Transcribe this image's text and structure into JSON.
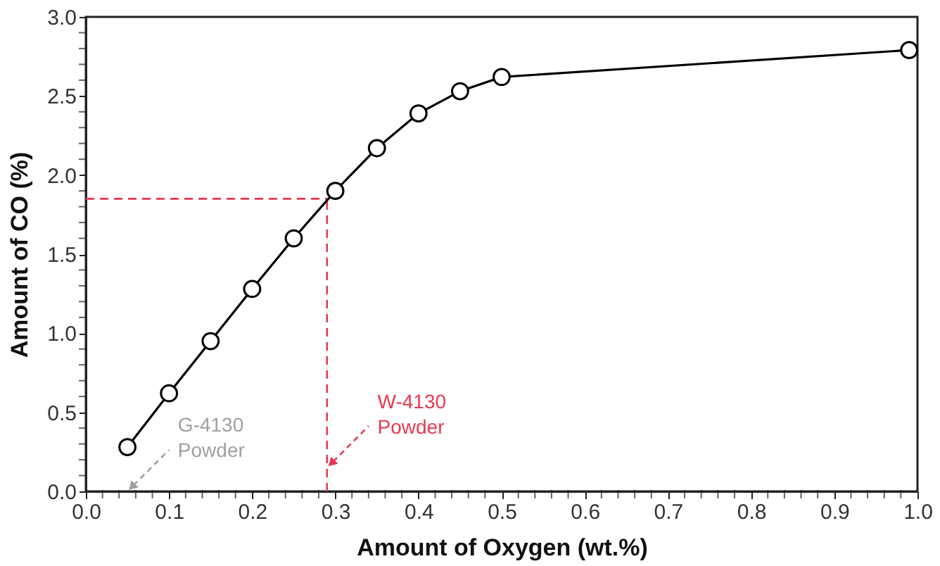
{
  "chart_data": {
    "type": "line",
    "xlabel": "Amount of Oxygen (wt.%)",
    "ylabel": "Amount of CO (%)",
    "x": [
      0.05,
      0.1,
      0.15,
      0.2,
      0.25,
      0.3,
      0.35,
      0.4,
      0.45,
      0.5,
      0.99
    ],
    "series": [
      {
        "color": "#000000",
        "values": [
          0.28,
          0.62,
          0.95,
          1.28,
          1.6,
          1.9,
          2.17,
          2.39,
          2.53,
          2.62,
          2.79
        ]
      }
    ],
    "marker": "circle",
    "line_style": "solid",
    "grid": false,
    "xlim": [
      0,
      1
    ],
    "ylim": [
      0,
      3
    ],
    "xticks": [
      {
        "value": 0,
        "label": "0.0"
      },
      {
        "value": 0.1,
        "label": "0.1"
      },
      {
        "value": 0.2,
        "label": "0.2"
      },
      {
        "value": 0.3,
        "label": "0.3"
      },
      {
        "value": 0.4,
        "label": "0.4"
      },
      {
        "value": 0.5,
        "label": "0.5"
      },
      {
        "value": 0.6,
        "label": "0.6"
      },
      {
        "value": 0.7,
        "label": "0.7"
      },
      {
        "value": 0.8,
        "label": "0.8"
      },
      {
        "value": 0.9,
        "label": "0.9"
      },
      {
        "value": 1,
        "label": "1.0"
      },
      {
        "value": 0.02,
        "label": null
      },
      {
        "value": 0.04,
        "label": null
      },
      {
        "value": 0.06,
        "label": null
      },
      {
        "value": 0.08,
        "label": null
      },
      {
        "value": 0.12,
        "label": null
      },
      {
        "value": 0.14,
        "label": null
      },
      {
        "value": 0.16,
        "label": null
      },
      {
        "value": 0.18,
        "label": null
      },
      {
        "value": 0.22,
        "label": null
      },
      {
        "value": 0.24,
        "label": null
      },
      {
        "value": 0.26,
        "label": null
      },
      {
        "value": 0.28,
        "label": null
      },
      {
        "value": 0.32,
        "label": null
      },
      {
        "value": 0.34,
        "label": null
      },
      {
        "value": 0.36,
        "label": null
      },
      {
        "value": 0.38,
        "label": null
      },
      {
        "value": 0.42,
        "label": null
      },
      {
        "value": 0.44,
        "label": null
      },
      {
        "value": 0.46,
        "label": null
      },
      {
        "value": 0.48,
        "label": null
      },
      {
        "value": 0.52,
        "label": null
      },
      {
        "value": 0.54,
        "label": null
      },
      {
        "value": 0.56,
        "label": null
      },
      {
        "value": 0.58,
        "label": null
      },
      {
        "value": 0.62,
        "label": null
      },
      {
        "value": 0.64,
        "label": null
      },
      {
        "value": 0.66,
        "label": null
      },
      {
        "value": 0.68,
        "label": null
      },
      {
        "value": 0.72,
        "label": null
      },
      {
        "value": 0.74,
        "label": null
      },
      {
        "value": 0.76,
        "label": null
      },
      {
        "value": 0.78,
        "label": null
      },
      {
        "value": 0.82,
        "label": null
      },
      {
        "value": 0.84,
        "label": null
      },
      {
        "value": 0.86,
        "label": null
      },
      {
        "value": 0.88,
        "label": null
      },
      {
        "value": 0.92,
        "label": null
      },
      {
        "value": 0.94,
        "label": null
      },
      {
        "value": 0.96,
        "label": null
      },
      {
        "value": 0.98,
        "label": null
      }
    ],
    "yticks": [
      {
        "value": 0,
        "label": "0.0"
      },
      {
        "value": 0.5,
        "label": "0.5"
      },
      {
        "value": 1,
        "label": "1.0"
      },
      {
        "value": 1.5,
        "label": "1.5"
      },
      {
        "value": 2,
        "label": "2.0"
      },
      {
        "value": 2.5,
        "label": "2.5"
      },
      {
        "value": 3,
        "label": "3.0"
      },
      {
        "value": 0.1,
        "label": null
      },
      {
        "value": 0.2,
        "label": null
      },
      {
        "value": 0.3,
        "label": null
      },
      {
        "value": 0.4,
        "label": null
      },
      {
        "value": 0.6,
        "label": null
      },
      {
        "value": 0.7,
        "label": null
      },
      {
        "value": 0.8,
        "label": null
      },
      {
        "value": 0.9,
        "label": null
      },
      {
        "value": 1.1,
        "label": null
      },
      {
        "value": 1.2,
        "label": null
      },
      {
        "value": 1.3,
        "label": null
      },
      {
        "value": 1.4,
        "label": null
      },
      {
        "value": 1.6,
        "label": null
      },
      {
        "value": 1.7,
        "label": null
      },
      {
        "value": 1.8,
        "label": null
      },
      {
        "value": 1.9,
        "label": null
      },
      {
        "value": 2.1,
        "label": null
      },
      {
        "value": 2.2,
        "label": null
      },
      {
        "value": 2.3,
        "label": null
      },
      {
        "value": 2.4,
        "label": null
      },
      {
        "value": 2.6,
        "label": null
      },
      {
        "value": 2.7,
        "label": null
      },
      {
        "value": 2.8,
        "label": null
      },
      {
        "value": 2.9,
        "label": null
      }
    ],
    "ref_lines": [
      {
        "axis": "y",
        "value": 1.85,
        "color": "#e8384f",
        "line_style": "dashed"
      },
      {
        "axis": "x",
        "value": 0.29,
        "color": "#e8384f",
        "line_style": "dashed"
      }
    ],
    "annotations": [
      "G-4130\nPowder",
      {
        "text": "W-4130\nPowder",
        "x": 0.29,
        "y": 0.15
      }
    ]
  }
}
